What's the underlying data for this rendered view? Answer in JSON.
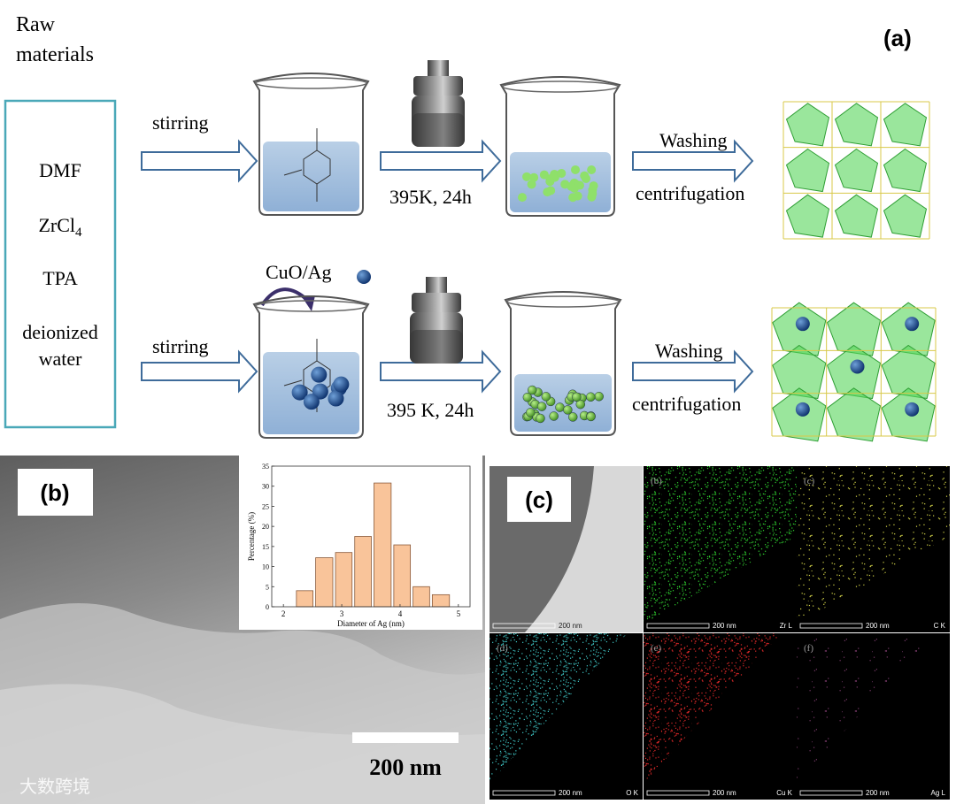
{
  "panel_a": {
    "label": "(a)",
    "raw_materials": [
      "Raw",
      "materials"
    ],
    "materials": {
      "dmf": "DMF",
      "zrcl": "ZrCl",
      "zrcl_sub": "4",
      "tpa": "TPA",
      "water": [
        "deionized",
        "water"
      ]
    },
    "top_route": {
      "step1": "stirring",
      "step2": "395K, 24h",
      "step3a": "Washing",
      "step3b": "centrifugation"
    },
    "bottom_route": {
      "additive": "CuO/Ag",
      "step1": "stirring",
      "step2": "395 K, 24h",
      "step3a": "Washing",
      "step3b": "centrifugation"
    }
  },
  "panel_b": {
    "label": "(b)",
    "scale_bar": "200 nm"
  },
  "chart_data": {
    "type": "histogram",
    "xlabel": "Diameter of Ag (nm)",
    "ylabel": "Percentage (%)",
    "bins": [
      2.2,
      2.53,
      2.87,
      3.2,
      3.53,
      3.87,
      4.2,
      4.53,
      4.87
    ],
    "values": [
      4,
      12.2,
      13.5,
      17.5,
      30.8,
      15.4,
      5,
      3
    ],
    "color": "#f9c49a",
    "xlim": [
      1.8,
      5.2
    ],
    "ylim": [
      0,
      35
    ],
    "xticks": [
      2,
      3,
      4,
      5
    ],
    "yticks": [
      0,
      5,
      10,
      15,
      20,
      25,
      30,
      35
    ]
  },
  "panel_c": {
    "label": "(c)",
    "tiles": [
      {
        "scale": "200 nm"
      },
      {
        "label": "(b)",
        "scale": "200 nm",
        "element": "Zr L",
        "color": "#2fd02f"
      },
      {
        "label": "(c)",
        "scale": "200 nm",
        "element": "C K",
        "color": "#d8d84a"
      },
      {
        "label": "(d)",
        "scale": "200 nm",
        "element": "O K",
        "color": "#3fc8c8"
      },
      {
        "label": "(e)",
        "scale": "200 nm",
        "element": "Cu K",
        "color": "#e02828"
      },
      {
        "label": "(f)",
        "scale": "200 nm",
        "element": "Ag L",
        "color": "#7a3a6a"
      }
    ]
  },
  "watermark": "大数跨境"
}
